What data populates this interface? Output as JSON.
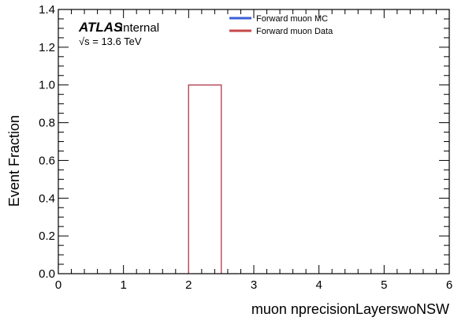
{
  "chart_data": {
    "type": "histogram",
    "xlabel": "muon nprecisionLayerswoNSW",
    "ylabel": "Event Fraction",
    "xlim": [
      0,
      6
    ],
    "ylim": [
      0,
      1.4
    ],
    "x_ticks": [
      "0",
      "1",
      "2",
      "3",
      "4",
      "5",
      "6"
    ],
    "y_ticks": [
      "0.0",
      "0.2",
      "0.4",
      "0.6",
      "0.8",
      "1.0",
      "1.2",
      "1.4"
    ],
    "legend_position": "top-center",
    "series": [
      {
        "name": "Forward muon MC",
        "color": "#3a5fd9",
        "bins": [
          {
            "x0": 2.0,
            "x1": 2.5,
            "value": 1.0
          }
        ]
      },
      {
        "name": "Forward muon Data",
        "color": "#c8474a",
        "bins": [
          {
            "x0": 2.0,
            "x1": 2.5,
            "value": 1.0
          }
        ]
      }
    ],
    "annotations": {
      "experiment": "ATLAS",
      "status": "Internal",
      "energy": "√s = 13.6 TeV"
    }
  }
}
